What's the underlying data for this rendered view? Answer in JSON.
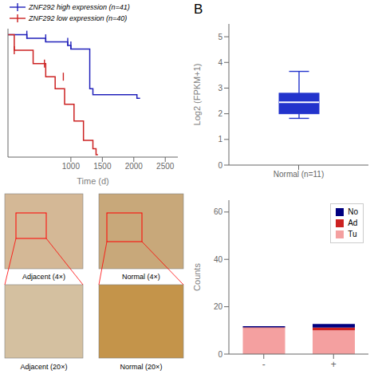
{
  "chart_data": [
    {
      "type": "step",
      "xlabel": "Time (d)",
      "xlim": [
        0,
        2700
      ],
      "ylim": [
        -0.02,
        1.05
      ],
      "xticks": [
        1000,
        1500,
        2000,
        2500
      ],
      "tick_labels": "x",
      "legend": "upper left",
      "series": [
        {
          "name": "ZNF292 high expression (n=41)",
          "color": "#2222BB",
          "marker": "|",
          "x": [
            0,
            300,
            300,
            600,
            600,
            900,
            950,
            950,
            1000,
            1000,
            1300,
            1300,
            1350,
            1350,
            2050,
            2050,
            2100
          ],
          "values": [
            1.0,
            1.0,
            0.97,
            0.97,
            0.94,
            0.94,
            0.94,
            0.91,
            0.91,
            0.88,
            0.88,
            0.55,
            0.55,
            0.5,
            0.5,
            0.47,
            0.47
          ],
          "censor_x": [
            300,
            600,
            950,
            1000
          ],
          "censor_y": [
            1.0,
            0.97,
            0.94,
            0.91
          ]
        },
        {
          "name": "ZNF292 low expression (n=40)",
          "color": "#CC2222",
          "marker": "|",
          "x": [
            0,
            100,
            100,
            400,
            400,
            600,
            600,
            750,
            750,
            900,
            900,
            1050,
            1050,
            1200,
            1200,
            1350,
            1350,
            1400,
            1400,
            1430
          ],
          "values": [
            1.0,
            1.0,
            0.87,
            0.87,
            0.76,
            0.76,
            0.65,
            0.65,
            0.55,
            0.55,
            0.42,
            0.42,
            0.28,
            0.28,
            0.12,
            0.12,
            0.05,
            0.05,
            0.0,
            0.0
          ],
          "censor_x": [
            100,
            580,
            880
          ],
          "censor_y": [
            0.87,
            0.76,
            0.65
          ]
        }
      ]
    },
    {
      "type": "box",
      "annotations": [
        "B"
      ],
      "categories": [
        "Normal (n=11)"
      ],
      "ylabel": "Log2 (FPKM+1)",
      "ylim": [
        0,
        5.5
      ],
      "yticks": [
        0,
        1,
        2,
        3,
        4,
        5
      ],
      "color": "#2233CC",
      "whisker_low": 1.82,
      "q1": 2.0,
      "median": 2.45,
      "q3": 2.8,
      "whisker_high": 3.65
    },
    {
      "type": "image",
      "annotations": [
        "Adjacent (4×)",
        "Normal (4×)",
        "Adjacent (20×)",
        "Normal (20×)"
      ],
      "colors": [
        "#D4B896",
        "#C8A87A",
        "#D4C0A0",
        "#C4944A"
      ],
      "color": "#FF0000"
    },
    {
      "type": "bar",
      "stacked": true,
      "categories": [
        "-",
        "+"
      ],
      "ylabel": "Counts",
      "ylim": [
        0,
        65
      ],
      "yticks": [
        0,
        20,
        40,
        60
      ],
      "legend": "upper right",
      "series": [
        {
          "name": "Tu",
          "color": "#F4A0A0",
          "values": [
            11,
            10
          ]
        },
        {
          "name": "Ad",
          "color": "#CC2222",
          "values": [
            0.3,
            1.2
          ]
        },
        {
          "name": "No",
          "color": "#000080",
          "values": [
            0.5,
            1.5
          ]
        }
      ]
    }
  ]
}
